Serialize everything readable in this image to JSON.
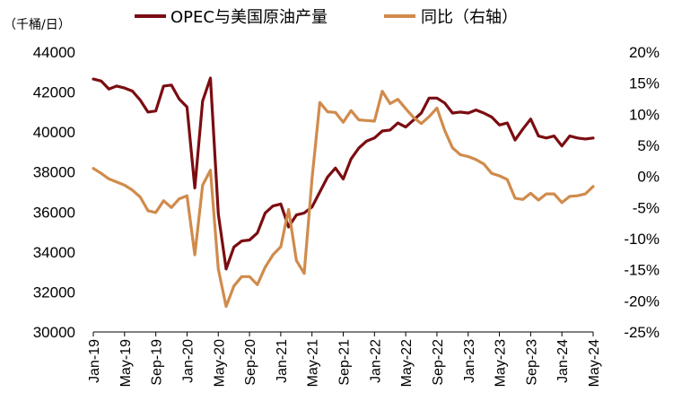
{
  "chart_data": {
    "type": "line",
    "title": "",
    "unit_label": "（千桶/日）",
    "x_tick_labels": [
      "Jan-19",
      "May-19",
      "Sep-19",
      "Jan-20",
      "May-20",
      "Sep-20",
      "Jan-21",
      "May-21",
      "Sep-21",
      "Jan-22",
      "May-22",
      "Sep-22",
      "Jan-23",
      "May-23",
      "Sep-23",
      "Jan-24",
      "May-24"
    ],
    "x_start": "2019-01",
    "x_step": "1 month",
    "y_left": {
      "min": 30000,
      "max": 44000,
      "step": 2000,
      "ticks": [
        "30000",
        "32000",
        "34000",
        "36000",
        "38000",
        "40000",
        "42000",
        "44000"
      ]
    },
    "y_right": {
      "min": -25,
      "max": 20,
      "step": 5,
      "ticks": [
        "-25%",
        "-20%",
        "-15%",
        "-10%",
        "-5%",
        "0%",
        "5%",
        "10%",
        "15%",
        "20%"
      ]
    },
    "legend_position": "top",
    "series": [
      {
        "name": "OPEC与美国原油产量",
        "axis": "left",
        "color": "#7b0d12",
        "values": [
          42650,
          42550,
          42150,
          42300,
          42200,
          42050,
          41600,
          41000,
          41050,
          42300,
          42350,
          41650,
          41250,
          37200,
          41550,
          42700,
          35900,
          33150,
          34250,
          34550,
          34600,
          34950,
          35950,
          36300,
          36400,
          35250,
          35850,
          35950,
          36250,
          37000,
          37750,
          38200,
          37650,
          38650,
          39200,
          39550,
          39700,
          40050,
          40100,
          40450,
          40250,
          40600,
          40950,
          41700,
          41700,
          41450,
          40950,
          41000,
          40950,
          41100,
          40950,
          40750,
          40350,
          40450,
          39600,
          40150,
          40650,
          39800,
          39700,
          39800,
          39300,
          39800,
          39700,
          39650,
          39700
        ]
      },
      {
        "name": "同比（右轴）",
        "axis": "right",
        "color": "#d08b4c",
        "values": [
          1.3,
          0.5,
          -0.4,
          -0.9,
          -1.4,
          -2.2,
          -3.3,
          -5.5,
          -5.8,
          -3.9,
          -5.0,
          -3.6,
          -3.1,
          -12.6,
          -1.4,
          1.0,
          -14.9,
          -20.9,
          -17.6,
          -16.1,
          -16.1,
          -17.4,
          -14.6,
          -12.6,
          -11.3,
          -5.3,
          -13.5,
          -15.6,
          -0.4,
          11.9,
          10.4,
          10.3,
          8.7,
          10.6,
          9.1,
          9.0,
          8.9,
          13.7,
          11.7,
          12.4,
          10.9,
          9.5,
          8.5,
          9.6,
          11.0,
          7.4,
          4.6,
          3.5,
          3.2,
          2.7,
          2.0,
          0.5,
          0.1,
          -0.5,
          -3.5,
          -3.7,
          -2.7,
          -3.8,
          -2.8,
          -2.8,
          -4.2,
          -3.2,
          -3.1,
          -2.8,
          -1.6
        ]
      }
    ]
  }
}
